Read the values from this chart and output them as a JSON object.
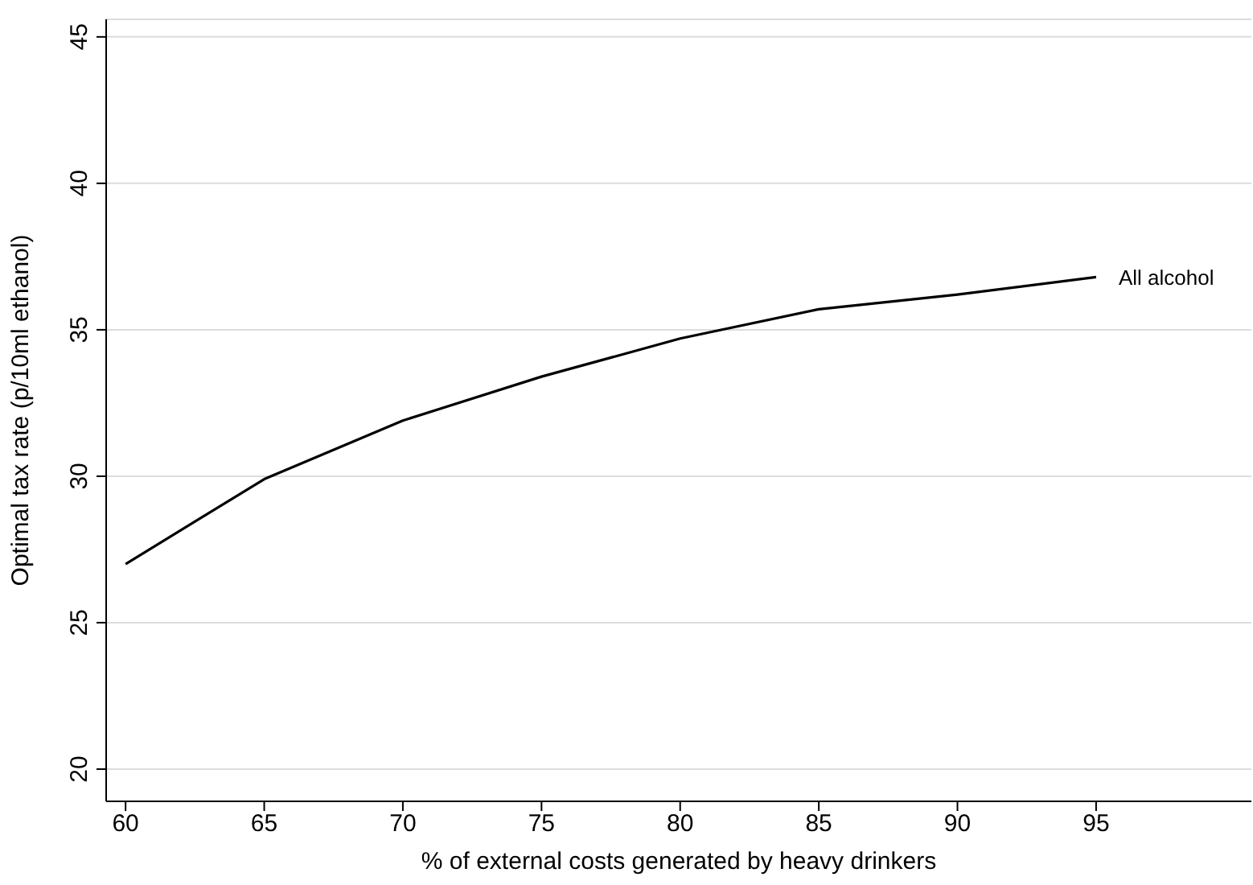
{
  "chart_data": {
    "type": "line",
    "xlabel": "% of external costs generated by heavy drinkers",
    "ylabel": "Optimal tax rate (p/10ml ethanol)",
    "x": [
      60,
      65,
      70,
      75,
      80,
      85,
      90,
      95
    ],
    "series": [
      {
        "name": "All alcohol",
        "color": "#000000",
        "values": [
          27.0,
          29.9,
          31.9,
          33.4,
          34.7,
          35.7,
          36.2,
          36.8
        ]
      }
    ],
    "xlim": [
      59.3,
      100.6
    ],
    "xticks": [
      60,
      65,
      70,
      75,
      80,
      85,
      90,
      95
    ],
    "ylim": [
      18.9,
      45.6
    ],
    "yticks": [
      20,
      25,
      30,
      35,
      40,
      45
    ],
    "grid": "y",
    "marker": "none",
    "line_style": "solid"
  }
}
